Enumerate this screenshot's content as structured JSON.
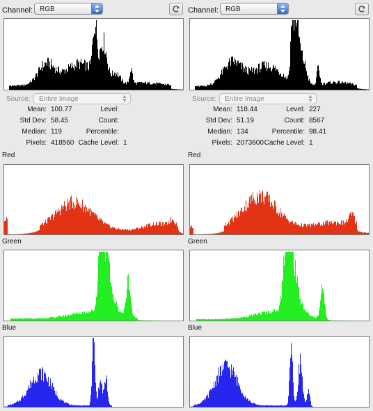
{
  "channel_label": "Channel:",
  "source_label": "Source:",
  "source_value": "Entire Image",
  "stat_labels": {
    "mean": "Mean:",
    "std_dev": "Std Dev:",
    "median": "Median:",
    "pixels": "Pixels:",
    "level": "Level:",
    "count": "Count:",
    "percentile": "Percentile:",
    "cache_level": "Cache Level:"
  },
  "section_labels": {
    "red": "Red",
    "green": "Green",
    "blue": "Blue"
  },
  "colors": {
    "luminosity": "#000000",
    "red": "#e23414",
    "green": "#22ee22",
    "blue": "#2626ee"
  },
  "left": {
    "channel_value": "RGB",
    "stats": {
      "mean": "100.77",
      "std_dev": "58.45",
      "median": "119",
      "pixels": "418560",
      "level": "",
      "count": "",
      "percentile": "",
      "cache_level": "1"
    }
  },
  "right": {
    "channel_value": "RGB",
    "stats": {
      "mean": "118.44",
      "std_dev": "51.19",
      "median": "134",
      "pixels": "2073600",
      "level": "227",
      "count": "8567",
      "percentile": "98.41",
      "cache_level": "1"
    }
  }
}
